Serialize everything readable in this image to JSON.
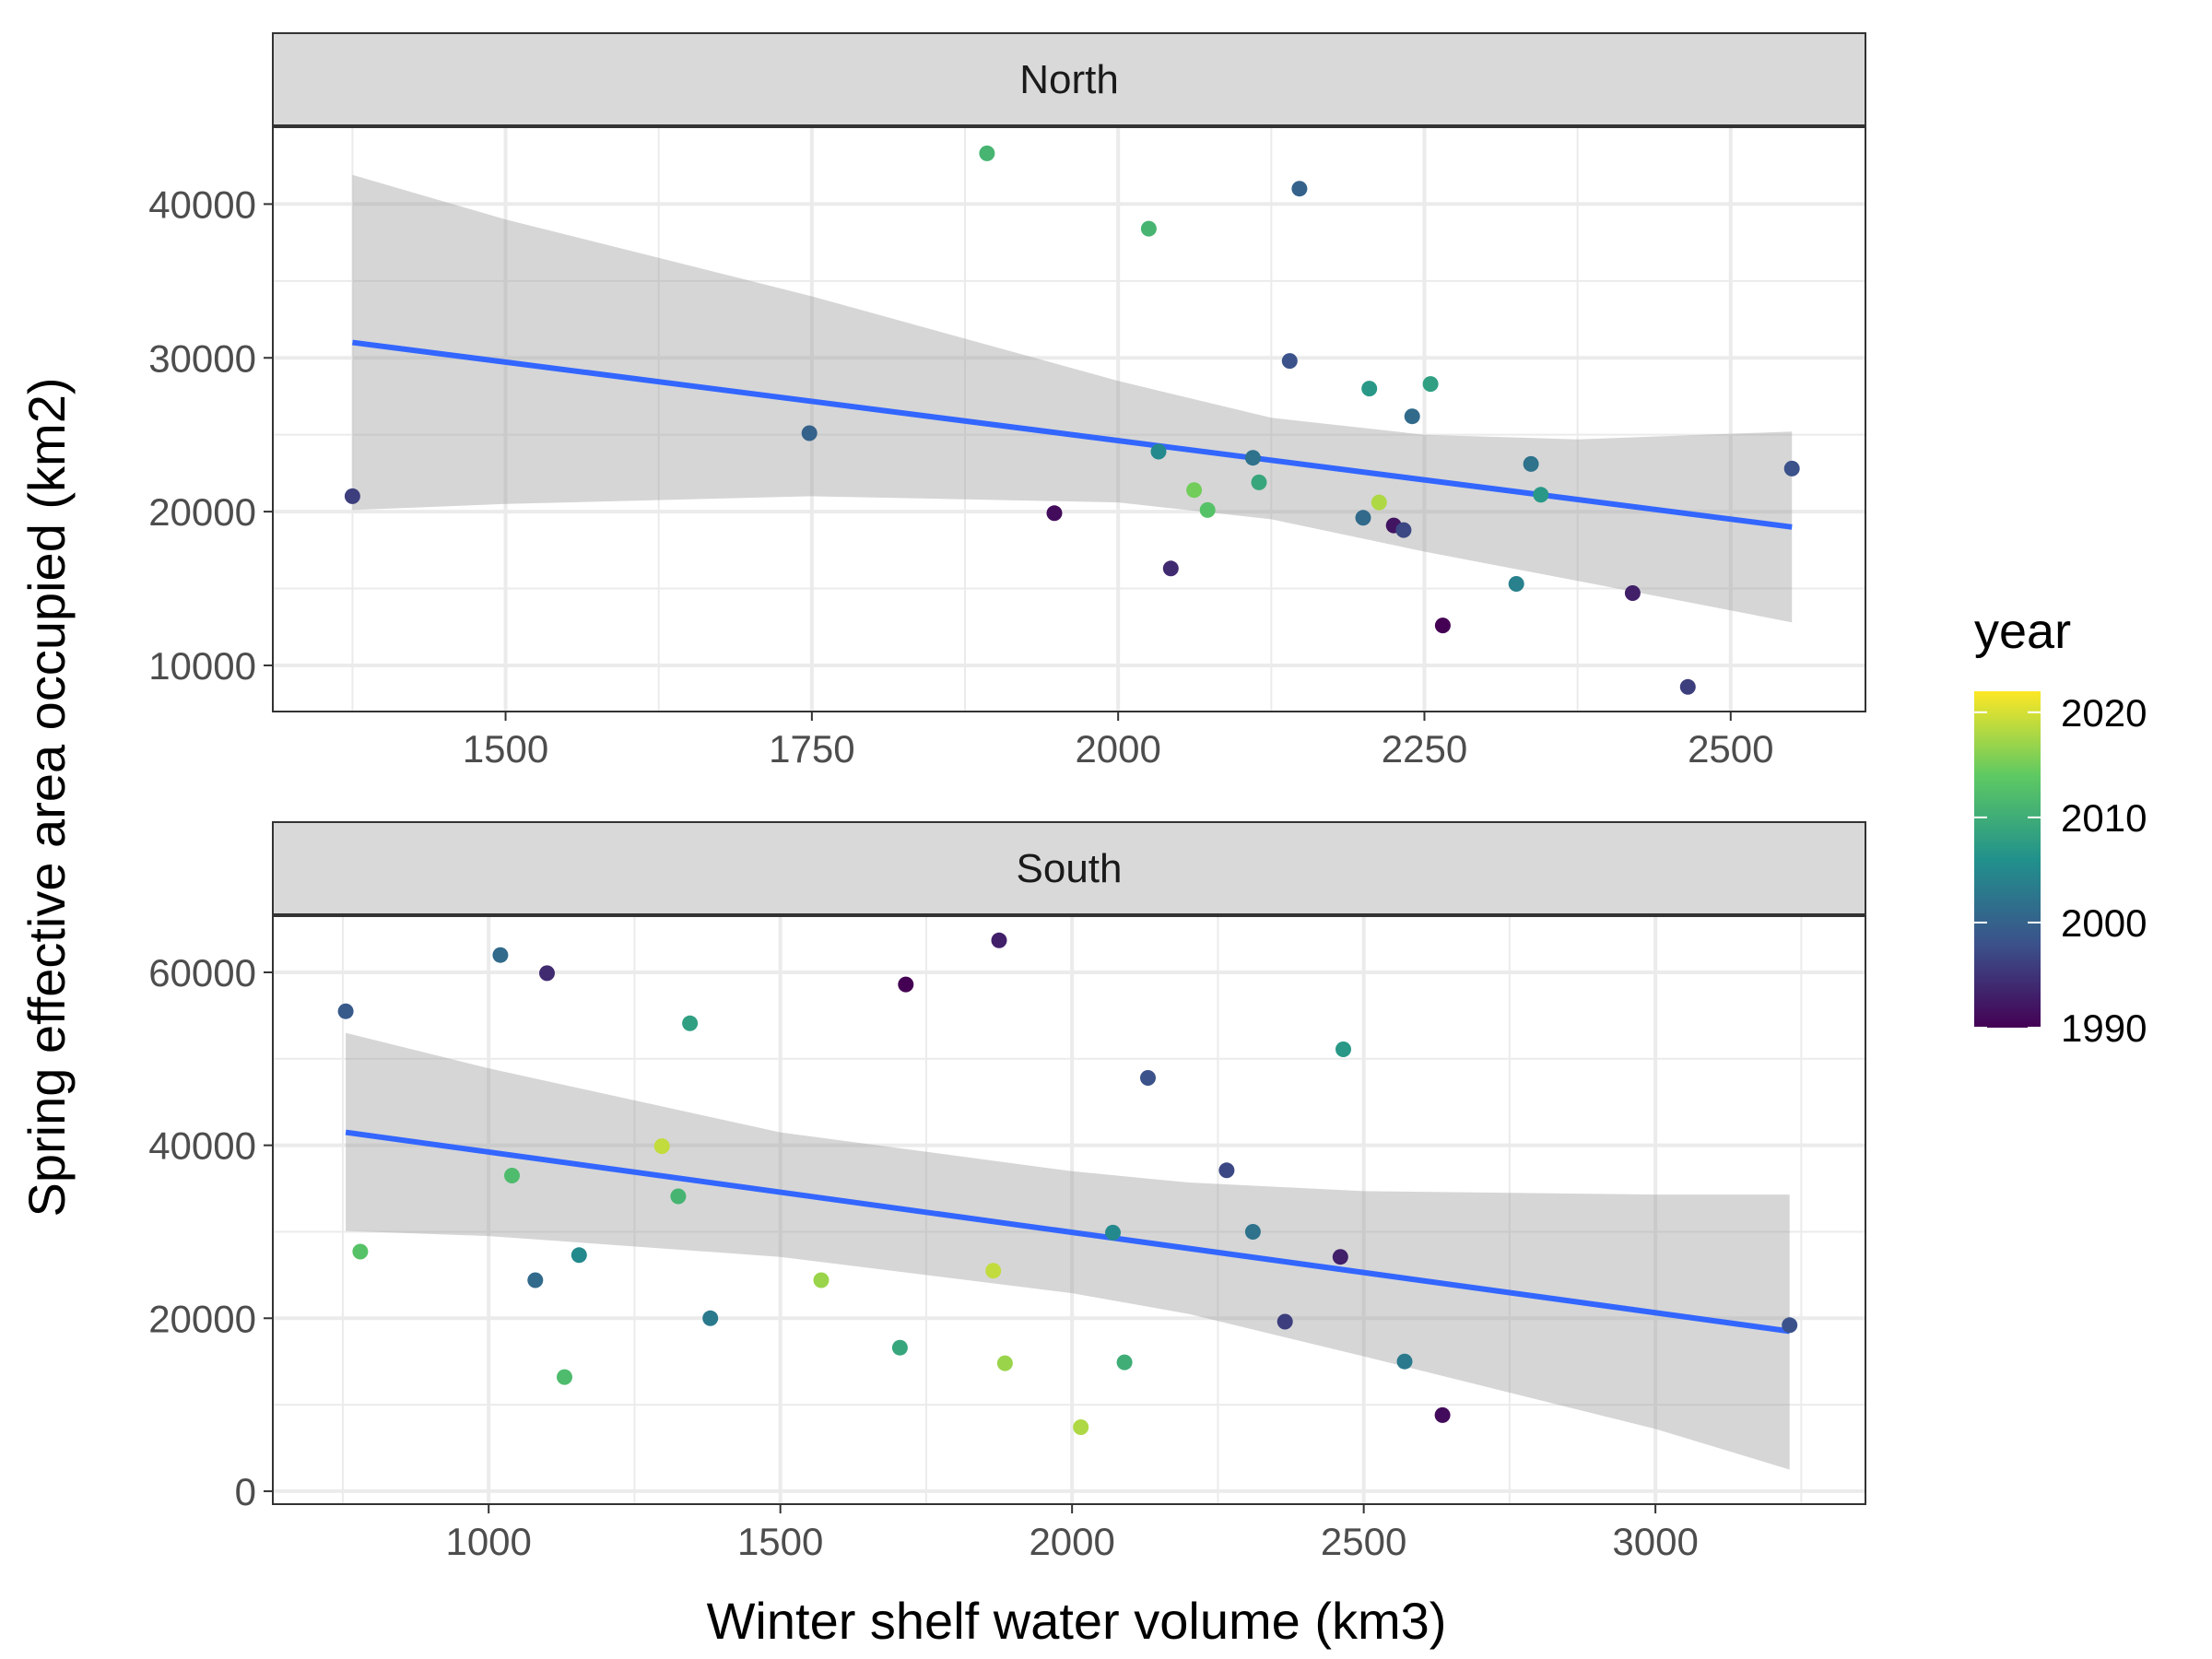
{
  "chart_data": {
    "type": "scatter",
    "facet_var": "region",
    "xlabel": "Winter shelf water volume (km3)",
    "ylabel": "Spring effective area occupied (km2)",
    "grid": true,
    "legend": {
      "title": "year",
      "type": "colorbar",
      "palette": "viridis",
      "range": [
        1990,
        2022
      ],
      "ticks": [
        1990,
        2000,
        2010,
        2020
      ],
      "colors": [
        "#440154",
        "#3b528b",
        "#21918c",
        "#5ec962",
        "#fde725"
      ],
      "placement": "right"
    },
    "fit": {
      "method": "linear",
      "color": "#3366ff",
      "ribbon": "95% CI",
      "ribbon_color": "#999999"
    },
    "panels": [
      {
        "label": "North",
        "xlim": [
          1310,
          2610
        ],
        "ylim": [
          7000,
          45000
        ],
        "xticks": [
          1500,
          1750,
          2000,
          2250,
          2500
        ],
        "yticks": [
          10000,
          20000,
          30000,
          40000
        ],
        "fit_line": [
          [
            1375,
            31000
          ],
          [
            2550,
            19000
          ]
        ],
        "ribbon": {
          "x": [
            1375,
            1500,
            1750,
            2000,
            2125,
            2250,
            2375,
            2550
          ],
          "upper": [
            41900,
            39000,
            34000,
            28500,
            26100,
            25000,
            24700,
            25200
          ],
          "lower": [
            20100,
            20500,
            21000,
            20600,
            19500,
            17400,
            15500,
            12800
          ]
        },
        "points": [
          {
            "x": 1375,
            "y": 21000,
            "year": 1996
          },
          {
            "x": 1748,
            "y": 25100,
            "year": 2000
          },
          {
            "x": 1893,
            "y": 43300,
            "year": 2011
          },
          {
            "x": 1948,
            "y": 19900,
            "year": 1991
          },
          {
            "x": 2025,
            "y": 38400,
            "year": 2011
          },
          {
            "x": 2033,
            "y": 23900,
            "year": 2005
          },
          {
            "x": 2043,
            "y": 16300,
            "year": 1994
          },
          {
            "x": 2062,
            "y": 21400,
            "year": 2015
          },
          {
            "x": 2073,
            "y": 20100,
            "year": 2013
          },
          {
            "x": 2110,
            "y": 23500,
            "year": 2002
          },
          {
            "x": 2115,
            "y": 21900,
            "year": 2009
          },
          {
            "x": 2140,
            "y": 29800,
            "year": 1998
          },
          {
            "x": 2148,
            "y": 41000,
            "year": 2000
          },
          {
            "x": 2200,
            "y": 19600,
            "year": 2001
          },
          {
            "x": 2205,
            "y": 28000,
            "year": 2007
          },
          {
            "x": 2213,
            "y": 20600,
            "year": 2018
          },
          {
            "x": 2225,
            "y": 19100,
            "year": 1992
          },
          {
            "x": 2233,
            "y": 18800,
            "year": 1997
          },
          {
            "x": 2240,
            "y": 26200,
            "year": 2001
          },
          {
            "x": 2255,
            "y": 28300,
            "year": 2008
          },
          {
            "x": 2265,
            "y": 12600,
            "year": 1990
          },
          {
            "x": 2325,
            "y": 15300,
            "year": 2004
          },
          {
            "x": 2337,
            "y": 23100,
            "year": 2002
          },
          {
            "x": 2345,
            "y": 21100,
            "year": 2007
          },
          {
            "x": 2420,
            "y": 14700,
            "year": 1993
          },
          {
            "x": 2465,
            "y": 8600,
            "year": 1996
          },
          {
            "x": 2550,
            "y": 22800,
            "year": 1998
          }
        ]
      },
      {
        "label": "South",
        "xlim": [
          630,
          3360
        ],
        "ylim": [
          -1500,
          66500
        ],
        "xticks": [
          1000,
          1500,
          2000,
          2500,
          3000
        ],
        "yticks": [
          0,
          20000,
          40000,
          60000
        ],
        "fit_line": [
          [
            755,
            41500
          ],
          [
            3230,
            18500
          ]
        ],
        "ribbon": {
          "x": [
            755,
            1000,
            1500,
            2000,
            2200,
            2500,
            3000,
            3230
          ],
          "upper": [
            53000,
            48900,
            41500,
            37000,
            35700,
            34700,
            34300,
            34300
          ],
          "lower": [
            30100,
            29500,
            27100,
            22900,
            20500,
            15600,
            7200,
            2500
          ]
        },
        "points": [
          {
            "x": 755,
            "y": 55500,
            "year": 1999
          },
          {
            "x": 780,
            "y": 27700,
            "year": 2013
          },
          {
            "x": 1020,
            "y": 62000,
            "year": 2001
          },
          {
            "x": 1040,
            "y": 36500,
            "year": 2012
          },
          {
            "x": 1080,
            "y": 24400,
            "year": 2001
          },
          {
            "x": 1100,
            "y": 59900,
            "year": 1994
          },
          {
            "x": 1130,
            "y": 13200,
            "year": 2012
          },
          {
            "x": 1155,
            "y": 27300,
            "year": 2005
          },
          {
            "x": 1297,
            "y": 39900,
            "year": 2019
          },
          {
            "x": 1325,
            "y": 34100,
            "year": 2011
          },
          {
            "x": 1345,
            "y": 54100,
            "year": 2008
          },
          {
            "x": 1380,
            "y": 20000,
            "year": 2003
          },
          {
            "x": 1570,
            "y": 24400,
            "year": 2017
          },
          {
            "x": 1705,
            "y": 16600,
            "year": 2009
          },
          {
            "x": 1715,
            "y": 58600,
            "year": 1990
          },
          {
            "x": 1865,
            "y": 25500,
            "year": 2019
          },
          {
            "x": 1875,
            "y": 63700,
            "year": 1993
          },
          {
            "x": 1885,
            "y": 14800,
            "year": 2017
          },
          {
            "x": 2015,
            "y": 7400,
            "year": 2018
          },
          {
            "x": 2070,
            "y": 29900,
            "year": 2005
          },
          {
            "x": 2090,
            "y": 14900,
            "year": 2010
          },
          {
            "x": 2130,
            "y": 47800,
            "year": 1998
          },
          {
            "x": 2265,
            "y": 37100,
            "year": 1997
          },
          {
            "x": 2310,
            "y": 30000,
            "year": 2002
          },
          {
            "x": 2365,
            "y": 19600,
            "year": 1996
          },
          {
            "x": 2460,
            "y": 27100,
            "year": 1993
          },
          {
            "x": 2465,
            "y": 51100,
            "year": 2007
          },
          {
            "x": 2570,
            "y": 15000,
            "year": 2003
          },
          {
            "x": 2635,
            "y": 8800,
            "year": 1991
          },
          {
            "x": 3230,
            "y": 19200,
            "year": 1998
          }
        ]
      }
    ]
  }
}
